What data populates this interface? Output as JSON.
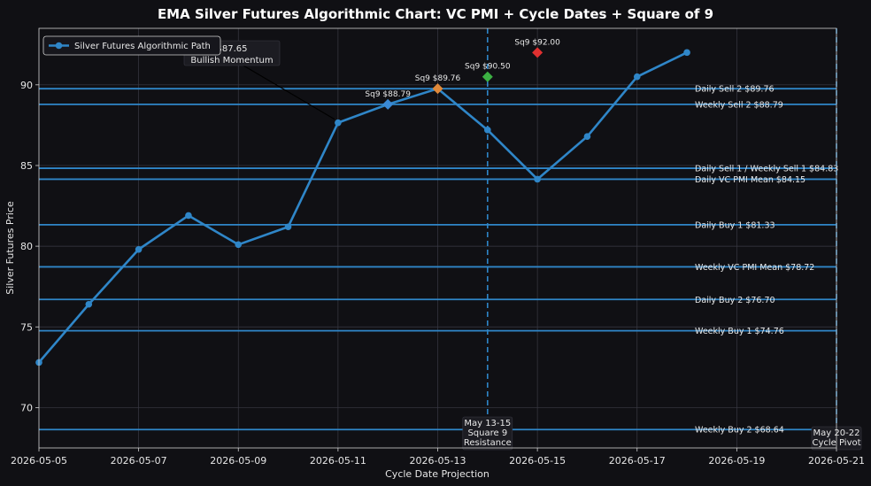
{
  "chart_data": {
    "type": "line",
    "title": "EMA Silver Futures Algorithmic Chart: VC PMI + Cycle Dates + Square of 9",
    "xlabel": "Cycle Date Projection",
    "ylabel": "Silver Futures Price",
    "xlim": [
      "2026-05-05",
      "2026-05-21"
    ],
    "ylim": [
      67.5,
      93.5
    ],
    "x_ticks": [
      "2026-05-05",
      "2026-05-07",
      "2026-05-09",
      "2026-05-11",
      "2026-05-13",
      "2026-05-15",
      "2026-05-17",
      "2026-05-19",
      "2026-05-21"
    ],
    "y_ticks": [
      70,
      75,
      80,
      85,
      90
    ],
    "grid": true,
    "legend_position": "top-left",
    "colors": {
      "background": "#101014",
      "series": "#2f86c8",
      "level_line": "#2f86c8",
      "grid": "#3a3a44",
      "sq9_blue": "#3a8ad6",
      "sq9_orange": "#e0893a",
      "sq9_green": "#3cb043",
      "sq9_red": "#e03030"
    },
    "series": [
      {
        "name": "Silver Futures Algorithmic Path",
        "x": [
          "2026-05-05",
          "2026-05-06",
          "2026-05-07",
          "2026-05-08",
          "2026-05-09",
          "2026-05-10",
          "2026-05-11",
          "2026-05-12",
          "2026-05-13",
          "2026-05-14",
          "2026-05-15",
          "2026-05-16",
          "2026-05-17",
          "2026-05-18"
        ],
        "y": [
          72.8,
          76.4,
          79.8,
          81.9,
          80.1,
          81.2,
          87.65,
          88.79,
          89.76,
          87.2,
          84.15,
          86.8,
          90.5,
          92.0
        ]
      }
    ],
    "levels": [
      {
        "label": "Daily Sell 2 $89.76",
        "value": 89.76
      },
      {
        "label": "Weekly Sell 2 $88.79",
        "value": 88.79
      },
      {
        "label": "Daily Sell 1 / Weekly Sell 1 $84.83",
        "value": 84.83
      },
      {
        "label": "Daily VC PMI Mean $84.15",
        "value": 84.15
      },
      {
        "label": "Daily Buy 1 $81.33",
        "value": 81.33
      },
      {
        "label": "Weekly VC PMI Mean $78.72",
        "value": 78.72
      },
      {
        "label": "Daily Buy 2 $76.70",
        "value": 76.7
      },
      {
        "label": "Weekly Buy 1 $74.76",
        "value": 74.76
      },
      {
        "label": "Weekly Buy 2 $68.64",
        "value": 68.64
      }
    ],
    "sq9_points": [
      {
        "label": "Sq9 $88.79",
        "x": "2026-05-12",
        "y": 88.79,
        "color": "#3a8ad6"
      },
      {
        "label": "Sq9 $89.76",
        "x": "2026-05-13",
        "y": 89.76,
        "color": "#e0893a"
      },
      {
        "label": "Sq9 $90.50",
        "x": "2026-05-14",
        "y": 90.5,
        "color": "#3cb043"
      },
      {
        "label": "Sq9 $92.00",
        "x": "2026-05-15",
        "y": 92.0,
        "color": "#e03030"
      }
    ],
    "vertical_markers": [
      {
        "x": "2026-05-14",
        "label_lines": [
          "May 13-15",
          "Square 9",
          "Resistance"
        ],
        "style": "dashed"
      },
      {
        "x": "2026-05-21",
        "label_lines": [
          "May 20-22",
          "Cycle Pivot"
        ],
        "style": "dashed"
      }
    ],
    "annotation": {
      "lines": [
        "$87.65",
        "Bullish Momentum"
      ],
      "target_x": "2026-05-11",
      "target_y": 87.65
    }
  }
}
